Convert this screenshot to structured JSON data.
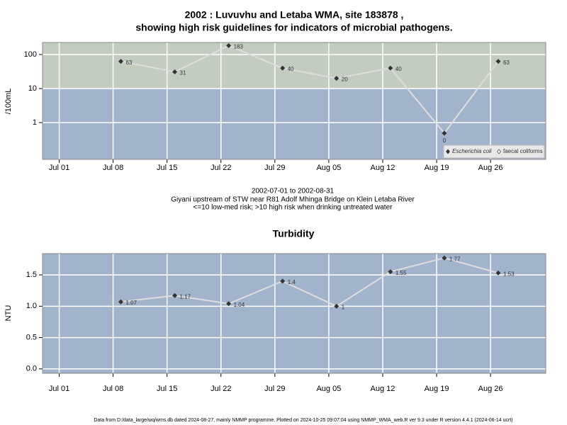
{
  "chart_data": [
    {
      "type": "line",
      "title": [
        "2002 : Luvuvhu and Letaba WMA, site 183878 ,",
        "showing high risk guidelines for indicators of microbial pathogens."
      ],
      "ylabel": "/100mL",
      "caption": [
        "2002-07-01 to 2002-08-31",
        "Giyani upstream of STW near R81 Adolf Mhinga Bridge on Klein Letaba River",
        "<=10 low-med risk; >10 high risk when drinking untreated water"
      ],
      "x": [
        "2002-07-09",
        "2002-07-16",
        "2002-07-23",
        "2002-07-30",
        "2002-08-06",
        "2002-08-13",
        "2002-08-20",
        "2002-08-27"
      ],
      "series": [
        {
          "name": "Escherichia coli",
          "color": "#333333",
          "line_color": "#dddddd",
          "values": [
            63,
            31,
            183,
            40,
            20,
            40,
            0.49,
            63
          ],
          "value_labels": [
            "63",
            "31",
            "183",
            "40",
            "20",
            "40",
            "0",
            "63"
          ]
        },
        {
          "name": "faecal coliforms",
          "color": "#ffffff",
          "values": [
            null,
            null,
            null,
            null,
            null,
            null,
            null,
            null
          ]
        }
      ],
      "log_scale": true,
      "ylim": [
        0.083,
        226
      ],
      "yticks": [
        1,
        10,
        100
      ],
      "xlim": [
        "2002-06-28T20:00",
        "2002-09-02T04:00"
      ],
      "xticks": [
        {
          "value": "2002-07-01",
          "label": "Jul 01"
        },
        {
          "value": "2002-07-08",
          "label": "Jul 08"
        },
        {
          "value": "2002-07-15",
          "label": "Jul 15"
        },
        {
          "value": "2002-07-22",
          "label": "Jul 22"
        },
        {
          "value": "2002-07-29",
          "label": "Jul 29"
        },
        {
          "value": "2002-08-05",
          "label": "Aug 05"
        },
        {
          "value": "2002-08-12",
          "label": "Aug 12"
        },
        {
          "value": "2002-08-19",
          "label": "Aug 19"
        },
        {
          "value": "2002-08-26",
          "label": "Aug 26"
        }
      ],
      "threshold": 10,
      "above_color": "#c2ccbf",
      "below_color": "#a2b3cc",
      "grid": true,
      "legend": "bottom-right"
    },
    {
      "type": "line",
      "title": "Turbidity",
      "ylabel": "NTU",
      "x": [
        "2002-07-09",
        "2002-07-16",
        "2002-07-23",
        "2002-07-30",
        "2002-08-06",
        "2002-08-13",
        "2002-08-20",
        "2002-08-27"
      ],
      "series": [
        {
          "color": "#333333",
          "line_color": "#dddddd",
          "values": [
            1.07,
            1.17,
            1.04,
            1.4,
            1,
            1.55,
            1.77,
            1.53
          ]
        }
      ],
      "ylim": [
        -0.07,
        1.84
      ],
      "yticks": [
        {
          "value": 0,
          "label": "0.0"
        },
        {
          "value": 0.5,
          "label": "0.5"
        },
        {
          "value": 1,
          "label": "1.0"
        },
        {
          "value": 1.5,
          "label": "1.5"
        }
      ],
      "xlim": [
        "2002-06-28T20:00",
        "2002-09-02T04:00"
      ],
      "xticks": [
        {
          "value": "2002-07-01",
          "label": "Jul 01"
        },
        {
          "value": "2002-07-08",
          "label": "Jul 08"
        },
        {
          "value": "2002-07-15",
          "label": "Jul 15"
        },
        {
          "value": "2002-07-22",
          "label": "Jul 22"
        },
        {
          "value": "2002-07-29",
          "label": "Jul 29"
        },
        {
          "value": "2002-08-05",
          "label": "Aug 05"
        },
        {
          "value": "2002-08-12",
          "label": "Aug 12"
        },
        {
          "value": "2002-08-19",
          "label": "Aug 19"
        },
        {
          "value": "2002-08-26",
          "label": "Aug 26"
        }
      ],
      "background": "#a2b3cc",
      "grid": true
    }
  ],
  "footer": "Data from D:/data_large/wq/wms.db dated 2024-08-27, mainly NMMP programme. Plotted on 2024-10-25 09:07:04 using NMMP_WMA_web.R ver 9.3 under R version 4.4.1 (2024-06-14 ucrt)"
}
